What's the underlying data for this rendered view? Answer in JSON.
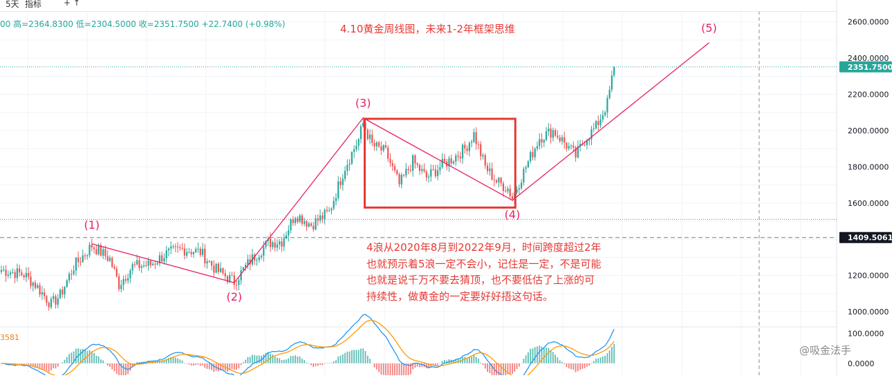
{
  "toolbar": {
    "items": [
      "5天",
      "指标",
      "+ ↑"
    ]
  },
  "ohlc": {
    "prefix": "00",
    "high_label": "高=2364.8300",
    "low_label": "低=2304.5000",
    "close_label": "收=2351.7500",
    "change_label": "+22.7400",
    "change_pct_label": "(+0.98%)"
  },
  "annotation_title": "4.10黄金周线图，未来1-2年框架思维",
  "note_lines": [
    "4浪从2020年8月到2022年9月，时间跨度超过2年",
    "也就预示着5浪一定不会小，记住是一定，不是可能",
    "也就是说千万不要去猜顶，也不要低估了上涨的可",
    "持续性，做黄金的一定要好好捂这句话。"
  ],
  "watermark": "@吸金法手",
  "oscillator_label": "3581",
  "colors": {
    "up": "#26a69a",
    "down": "#ef5350",
    "wave_line": "#e91e63",
    "annotation": "#e53935",
    "current_price_bg": "#26a69a",
    "ref_price_bg": "#131722",
    "macd_line": "#2196f3",
    "signal_line": "#ff9800"
  },
  "chart_data": {
    "type": "candlestick",
    "price_axis": {
      "ticks": [
        "2600.0000",
        "2400.0000",
        "2200.0000",
        "2000.0000",
        "1800.0000",
        "1600.0000",
        "1200.0000",
        "1000.0000"
      ],
      "tick_values": [
        2600,
        2400,
        2200,
        2000,
        1800,
        1600,
        1200,
        1000
      ],
      "range": [
        920,
        2660
      ]
    },
    "current_price": {
      "value": 2351.75,
      "label": "2351.7500"
    },
    "reference_price": {
      "value": 1409.5061,
      "label": "1409.5061"
    },
    "horizontal_dotted_level": 1510,
    "oscillator_axis": {
      "ticks": [
        "100.0000",
        "0.0000"
      ],
      "tick_values": [
        100,
        0
      ],
      "range": [
        -40,
        120
      ]
    },
    "wave_points": [
      {
        "label": "(1)",
        "bar": 40,
        "price": 1375
      },
      {
        "label": "(2)",
        "bar": 103,
        "price": 1160
      },
      {
        "label": "(3)",
        "bar": 160,
        "price": 2070
      },
      {
        "label": "(4)",
        "bar": 226,
        "price": 1615
      },
      {
        "label": "(5)",
        "bar": 313,
        "price": 2485
      }
    ],
    "wave_segments": [
      {
        "from": "(1)",
        "to": "(2)"
      },
      {
        "from": "(2)",
        "to": "(3)"
      },
      {
        "from": "(3)",
        "to": "(4)"
      },
      {
        "from": "(4)",
        "to": "(5)"
      }
    ],
    "consolidation_box": {
      "bar_start": 161,
      "bar_end": 227,
      "price_high": 2065,
      "price_low": 1575
    },
    "close_anchors": [
      [
        0,
        1230
      ],
      [
        10,
        1205
      ],
      [
        15,
        1150
      ],
      [
        22,
        1040
      ],
      [
        26,
        1090
      ],
      [
        32,
        1250
      ],
      [
        40,
        1365
      ],
      [
        48,
        1290
      ],
      [
        52,
        1150
      ],
      [
        58,
        1250
      ],
      [
        66,
        1260
      ],
      [
        73,
        1320
      ],
      [
        80,
        1345
      ],
      [
        88,
        1330
      ],
      [
        95,
        1230
      ],
      [
        103,
        1165
      ],
      [
        110,
        1280
      ],
      [
        118,
        1380
      ],
      [
        124,
        1390
      ],
      [
        130,
        1540
      ],
      [
        137,
        1480
      ],
      [
        145,
        1550
      ],
      [
        152,
        1800
      ],
      [
        158,
        1950
      ],
      [
        160,
        2040
      ],
      [
        164,
        1920
      ],
      [
        170,
        1880
      ],
      [
        176,
        1700
      ],
      [
        182,
        1830
      ],
      [
        188,
        1740
      ],
      [
        195,
        1810
      ],
      [
        200,
        1850
      ],
      [
        205,
        1900
      ],
      [
        209,
        1980
      ],
      [
        214,
        1800
      ],
      [
        219,
        1720
      ],
      [
        224,
        1680
      ],
      [
        226,
        1630
      ],
      [
        232,
        1800
      ],
      [
        238,
        1960
      ],
      [
        244,
        2000
      ],
      [
        250,
        1920
      ],
      [
        254,
        1860
      ],
      [
        258,
        1950
      ],
      [
        263,
        2020
      ],
      [
        268,
        2150
      ],
      [
        271,
        2351.75
      ]
    ],
    "bar_count": 272
  }
}
